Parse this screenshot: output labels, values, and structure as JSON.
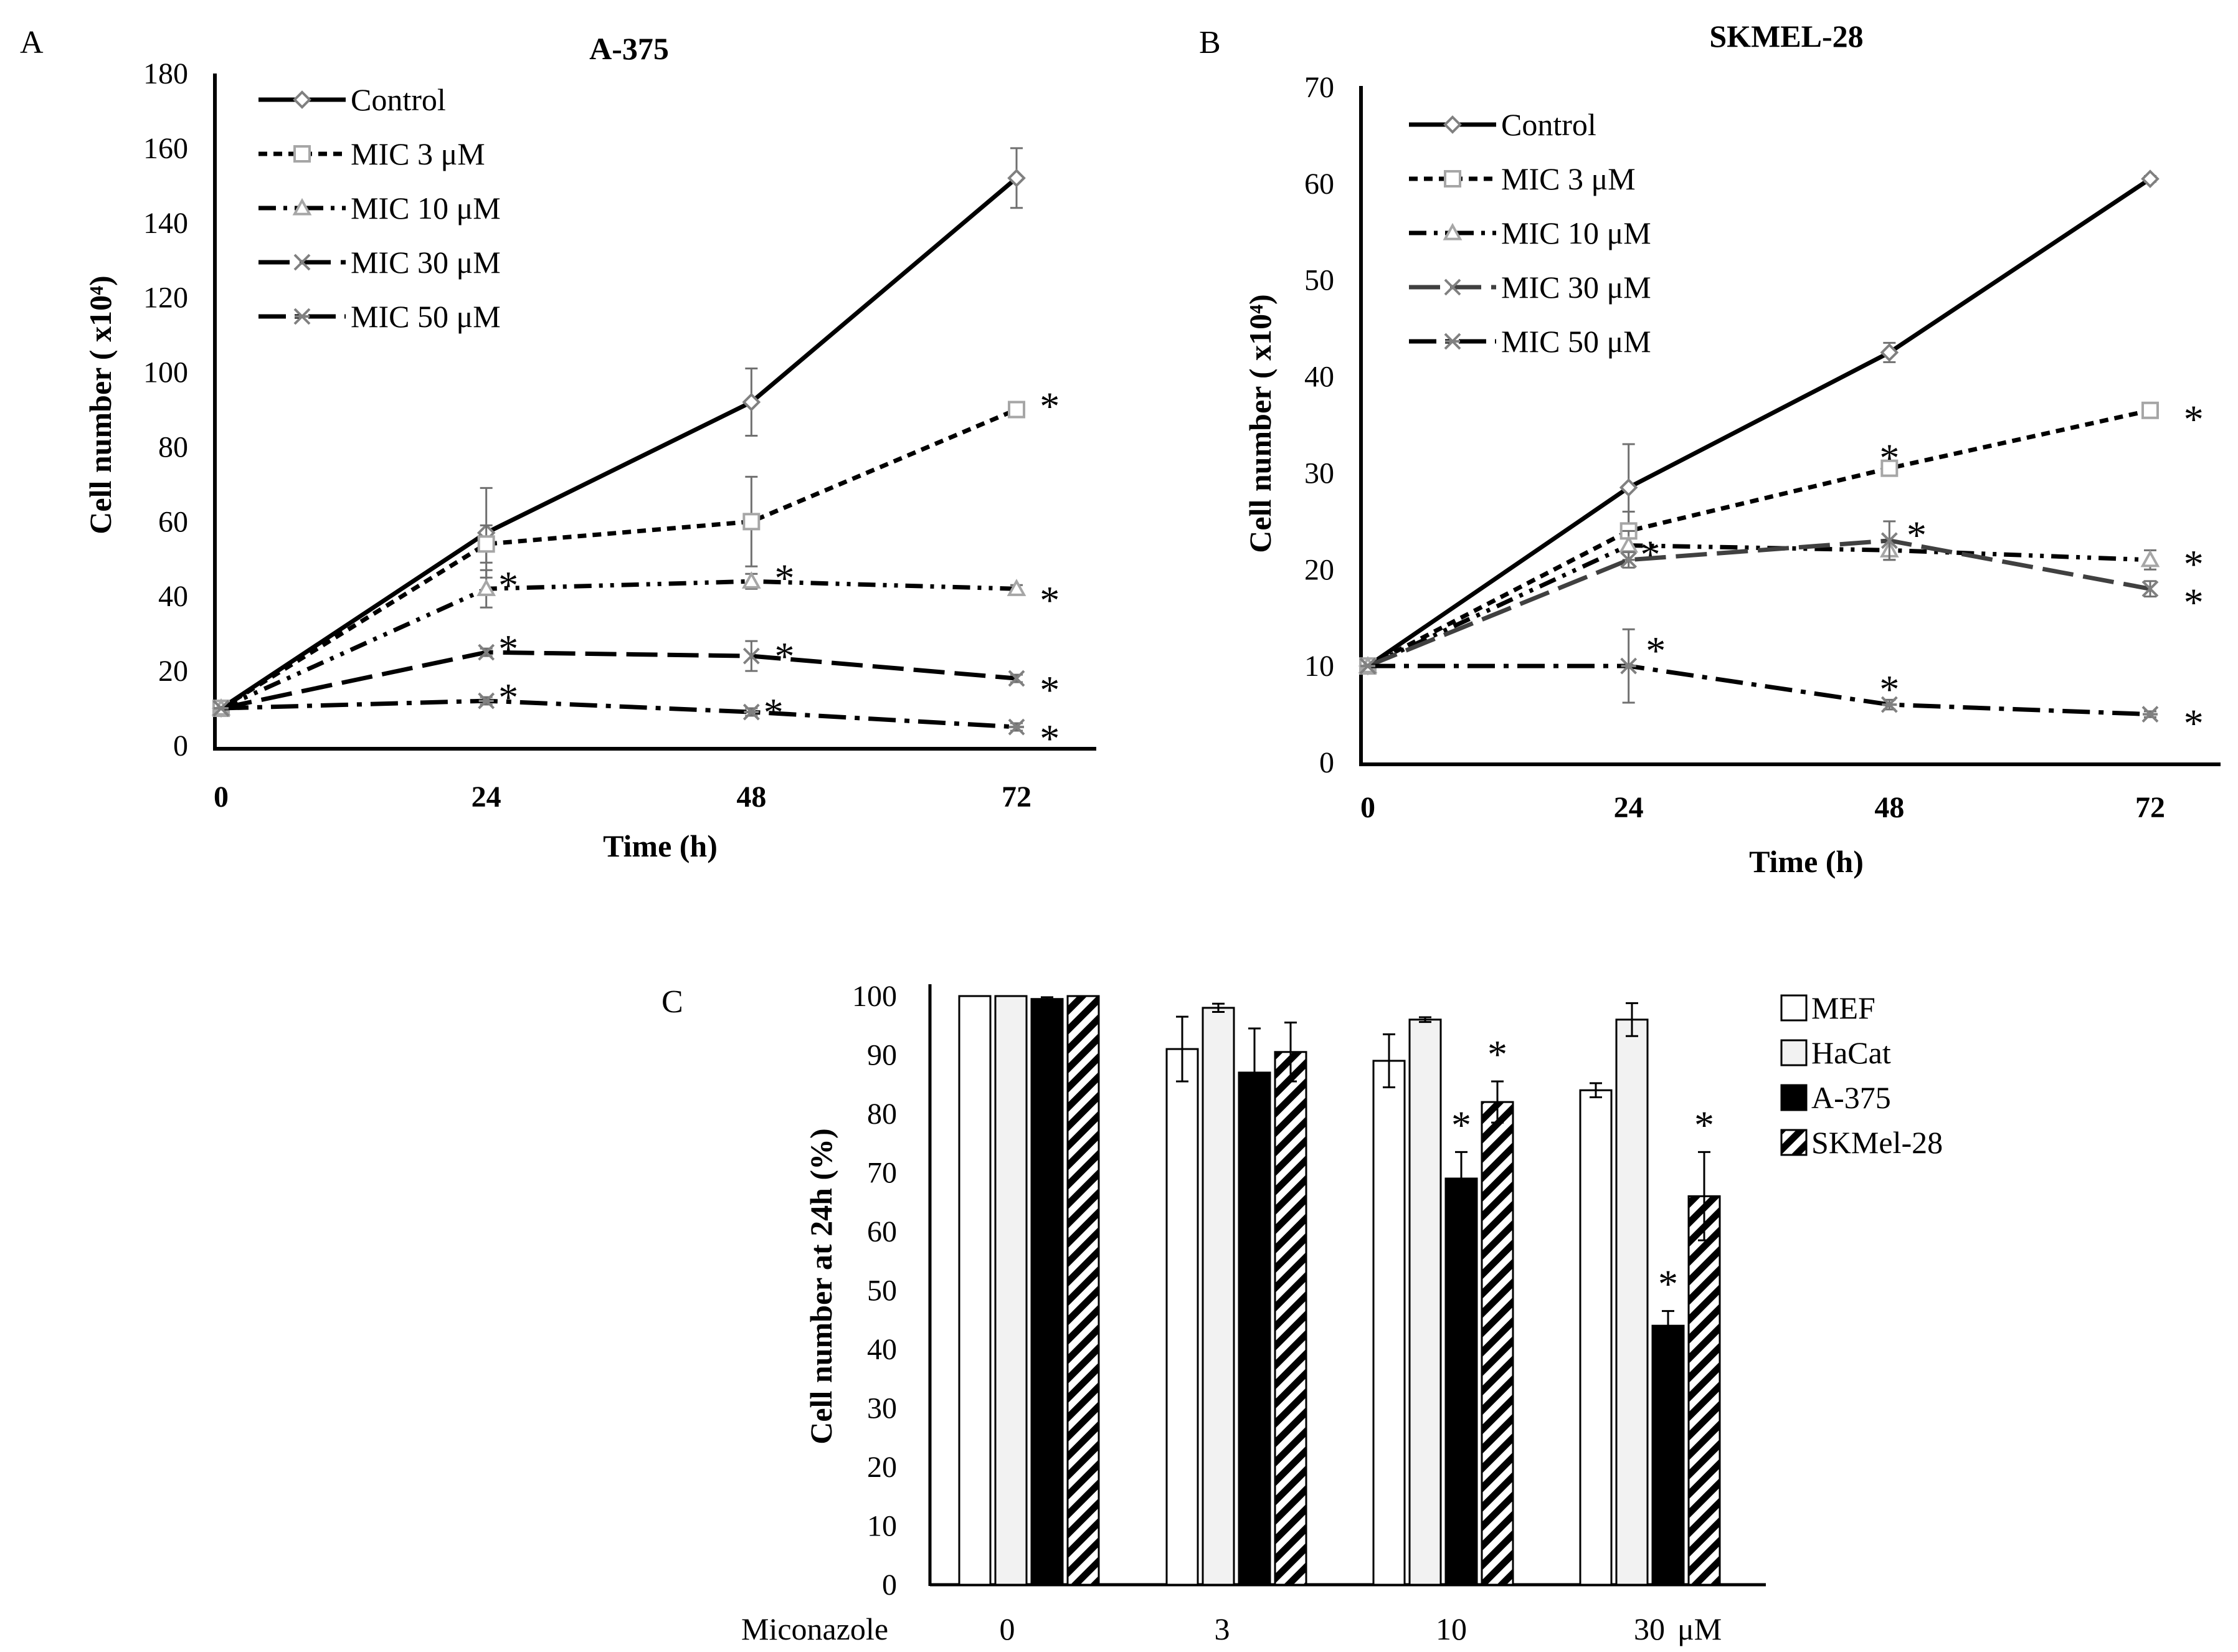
{
  "chart_data": [
    {
      "panel": "A",
      "type": "line",
      "title": "A-375",
      "xlabel": "Time (h)",
      "ylabel": "Cell number ( x10⁴)",
      "x": [
        0,
        24,
        48,
        72
      ],
      "x_ticks": [
        "0",
        "24",
        "48",
        "72"
      ],
      "ylim": [
        0,
        180
      ],
      "y_ticks": [
        "0",
        "20",
        "40",
        "60",
        "80",
        "100",
        "120",
        "140",
        "160",
        "180"
      ],
      "legend_position": "top-left",
      "series": [
        {
          "name": "Control",
          "values": [
            10,
            57,
            92,
            152
          ],
          "errors": [
            0,
            12,
            9,
            8
          ],
          "marker": "diamond",
          "dash": "solid",
          "color": "#000000",
          "marker_color": "#808080"
        },
        {
          "name": "MIC 3 μM",
          "values": [
            10,
            54,
            60,
            90
          ],
          "errors": [
            0,
            5,
            12,
            1
          ],
          "marker": "square",
          "dash": "short-dash",
          "color": "#000000",
          "marker_color": "#a6a6a6"
        },
        {
          "name": "MIC 10 μM",
          "values": [
            10,
            42,
            44,
            42
          ],
          "errors": [
            0,
            5,
            2,
            1
          ],
          "marker": "triangle",
          "dash": "dash-dot-dot",
          "color": "#000000",
          "marker_color": "#a6a6a6"
        },
        {
          "name": "MIC 30 μM",
          "values": [
            10,
            25,
            24,
            18
          ],
          "errors": [
            0,
            1,
            4,
            1
          ],
          "marker": "x",
          "dash": "long-dash",
          "color": "#000000",
          "marker_color": "#808080"
        },
        {
          "name": "MIC 50 μM",
          "values": [
            10,
            12,
            9,
            5
          ],
          "errors": [
            0,
            1,
            1,
            1
          ],
          "marker": "star",
          "dash": "dash-dot",
          "color": "#000000",
          "marker_color": "#808080"
        }
      ],
      "annotations": [
        {
          "text": "*",
          "x": 75,
          "y": 92
        },
        {
          "text": "*",
          "x": 26,
          "y": 44
        },
        {
          "text": "*",
          "x": 51,
          "y": 46
        },
        {
          "text": "*",
          "x": 75,
          "y": 40
        },
        {
          "text": "*",
          "x": 26,
          "y": 27
        },
        {
          "text": "*",
          "x": 51,
          "y": 25
        },
        {
          "text": "*",
          "x": 75,
          "y": 16
        },
        {
          "text": "*",
          "x": 26,
          "y": 14
        },
        {
          "text": "*",
          "x": 50,
          "y": 10
        },
        {
          "text": "*",
          "x": 75,
          "y": 3
        }
      ]
    },
    {
      "panel": "B",
      "type": "line",
      "title": "SKMEL-28",
      "xlabel": "Time (h)",
      "ylabel": "Cell number ( x10⁴)",
      "x": [
        0,
        24,
        48,
        72
      ],
      "x_ticks": [
        "0",
        "24",
        "48",
        "72"
      ],
      "ylim": [
        0,
        70
      ],
      "y_ticks": [
        "0",
        "10",
        "20",
        "30",
        "40",
        "50",
        "60",
        "70"
      ],
      "legend_position": "top-left",
      "series": [
        {
          "name": "Control",
          "values": [
            10,
            28.5,
            42.5,
            60.5
          ],
          "errors": [
            0,
            4.5,
            1,
            0.3
          ],
          "marker": "diamond",
          "dash": "solid",
          "color": "#000000",
          "marker_color": "#808080"
        },
        {
          "name": "MIC 3 μM",
          "values": [
            10,
            24,
            30.5,
            36.5
          ],
          "errors": [
            0,
            2,
            0.5,
            0.3
          ],
          "marker": "square",
          "dash": "short-dash",
          "color": "#000000",
          "marker_color": "#a6a6a6"
        },
        {
          "name": "MIC 10 μM",
          "values": [
            10,
            22.5,
            22,
            21
          ],
          "errors": [
            0,
            1.5,
            1,
            1
          ],
          "marker": "triangle",
          "dash": "dash-dot-dot",
          "color": "#000000",
          "marker_color": "#a6a6a6"
        },
        {
          "name": "MIC 30 μM",
          "values": [
            10,
            21,
            23,
            18
          ],
          "errors": [
            0,
            0.8,
            2,
            0.8
          ],
          "marker": "x",
          "dash": "long-dash",
          "color": "#404040",
          "marker_color": "#808080"
        },
        {
          "name": "MIC 50 μM",
          "values": [
            10,
            10,
            6,
            5
          ],
          "errors": [
            0,
            3.8,
            0.5,
            0.3
          ],
          "marker": "star",
          "dash": "dash-dot",
          "color": "#000000",
          "marker_color": "#808080"
        }
      ],
      "annotations": [
        {
          "text": "*",
          "x": 76,
          "y": 36
        },
        {
          "text": "*",
          "x": 48,
          "y": 32
        },
        {
          "text": "*",
          "x": 26,
          "y": 22
        },
        {
          "text": "*",
          "x": 50.5,
          "y": 24
        },
        {
          "text": "*",
          "x": 76,
          "y": 21
        },
        {
          "text": "*",
          "x": 76,
          "y": 17
        },
        {
          "text": "*",
          "x": 26.5,
          "y": 12
        },
        {
          "text": "*",
          "x": 48,
          "y": 8
        },
        {
          "text": "*",
          "x": 76,
          "y": 4.5
        }
      ]
    },
    {
      "panel": "C",
      "type": "bar",
      "xlabel": "Miconazole",
      "ylabel": "Cell number at 24h (%)",
      "categories": [
        "0",
        "3",
        "10",
        "30"
      ],
      "unit_label": "μM",
      "ylim": [
        0,
        100
      ],
      "y_ticks": [
        "0",
        "10",
        "20",
        "30",
        "40",
        "50",
        "60",
        "70",
        "80",
        "90",
        "100"
      ],
      "legend_position": "top-right",
      "series": [
        {
          "name": "MEF",
          "values": [
            100,
            91,
            89,
            84
          ],
          "errors": [
            0,
            5.5,
            4.5,
            1.2
          ],
          "fill": "#ffffff",
          "pattern": "none"
        },
        {
          "name": "HaCat",
          "values": [
            100,
            98,
            96,
            96
          ],
          "errors": [
            0,
            0.7,
            0.4,
            2.8
          ],
          "fill": "#f2f2f2",
          "pattern": "none"
        },
        {
          "name": "A-375",
          "values": [
            99.5,
            87,
            69,
            44
          ],
          "errors": [
            0.3,
            7.5,
            4.5,
            2.5
          ],
          "fill": "#000000",
          "pattern": "none"
        },
        {
          "name": "SKMel-28",
          "values": [
            100,
            90.5,
            82,
            66
          ],
          "errors": [
            0,
            5,
            3.5,
            7.5
          ],
          "fill": "#ffffff",
          "pattern": "diagonal-stripes"
        }
      ],
      "significance": [
        {
          "category": "10",
          "series": "A-375",
          "text": "*"
        },
        {
          "category": "10",
          "series": "SKMel-28",
          "text": "*"
        },
        {
          "category": "30",
          "series": "A-375",
          "text": "*"
        },
        {
          "category": "30",
          "series": "SKMel-28",
          "text": "*"
        }
      ]
    }
  ]
}
